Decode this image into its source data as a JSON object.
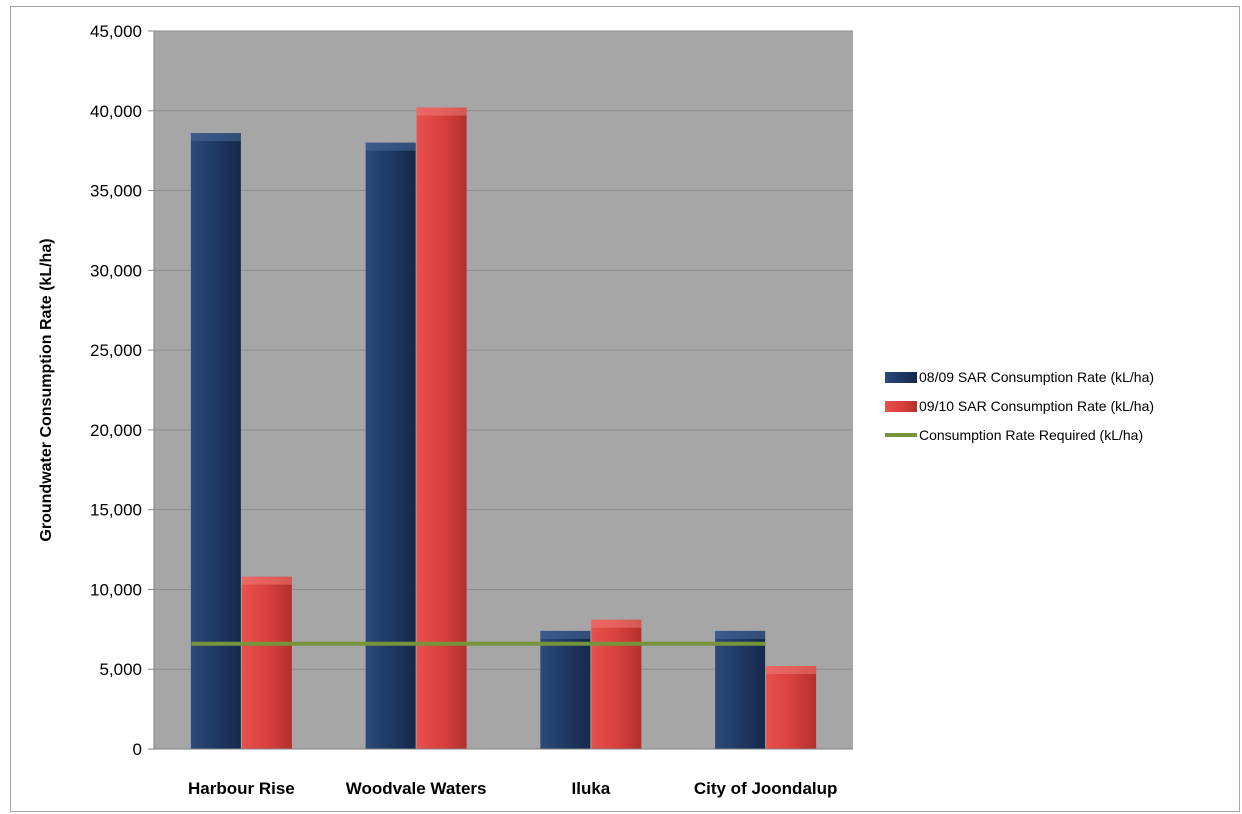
{
  "chart_data": {
    "type": "bar",
    "title": "",
    "xlabel": "",
    "ylabel": "Groundwater Consumption Rate  (kL/ha)",
    "ylim": [
      0,
      45000
    ],
    "ytick_labels": [
      "0",
      "5,000",
      "10,000",
      "15,000",
      "20,000",
      "25,000",
      "30,000",
      "35,000",
      "40,000",
      "45,000"
    ],
    "yticks": [
      0,
      5000,
      10000,
      15000,
      20000,
      25000,
      30000,
      35000,
      40000,
      45000
    ],
    "grid": true,
    "legend_position": "right",
    "categories": [
      "Harbour Rise",
      "Woodvale Waters",
      "Iluka",
      "City of Joondalup"
    ],
    "series": [
      {
        "name": "08/09 SAR Consumption  Rate (kL/ha)",
        "type": "bar",
        "color": "#1f3864",
        "values": [
          38600,
          38000,
          7400,
          7400
        ]
      },
      {
        "name": "09/10 SAR Consumption  Rate (kL/ha)",
        "type": "bar",
        "color": "#d9413e",
        "values": [
          10800,
          40200,
          8100,
          5200
        ]
      },
      {
        "name": "Consumption  Rate Required (kL/ha)",
        "type": "line",
        "color": "#77933c",
        "values": [
          6600,
          6600,
          6600,
          6600
        ]
      }
    ],
    "colors": {
      "plot_background": "#a6a6a6",
      "gridline": "#8c8c8c"
    }
  }
}
